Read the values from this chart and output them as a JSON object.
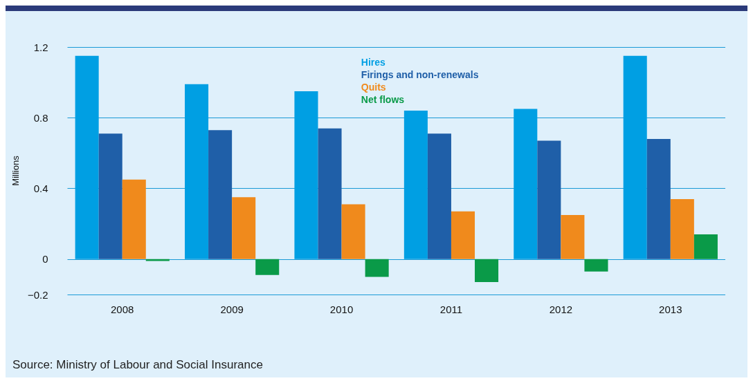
{
  "chart_data": {
    "type": "bar",
    "ylabel": "Millions",
    "categories": [
      "2008",
      "2009",
      "2010",
      "2011",
      "2012",
      "2013"
    ],
    "series": [
      {
        "name": "Hires",
        "color": "#009fe3",
        "values": [
          1.15,
          0.99,
          0.95,
          0.84,
          0.85,
          1.15
        ]
      },
      {
        "name": "Firings and non-renewals",
        "color": "#1f5fa8",
        "values": [
          0.71,
          0.73,
          0.74,
          0.71,
          0.67,
          0.68
        ]
      },
      {
        "name": "Quits",
        "color": "#f08a1c",
        "values": [
          0.45,
          0.35,
          0.31,
          0.27,
          0.25,
          0.34
        ]
      },
      {
        "name": "Net flows",
        "color": "#0a9a48",
        "values": [
          -0.01,
          -0.09,
          -0.1,
          -0.13,
          -0.07,
          0.14
        ]
      }
    ],
    "ylim": [
      -0.2,
      1.2
    ],
    "yticks": [
      {
        "value": -0.2,
        "label": "−0.2"
      },
      0,
      0.4,
      0.8,
      1.2
    ],
    "grid": "y",
    "legend": "top",
    "annotations": [
      "Source: Ministry of Labour and Social Insurance"
    ]
  }
}
